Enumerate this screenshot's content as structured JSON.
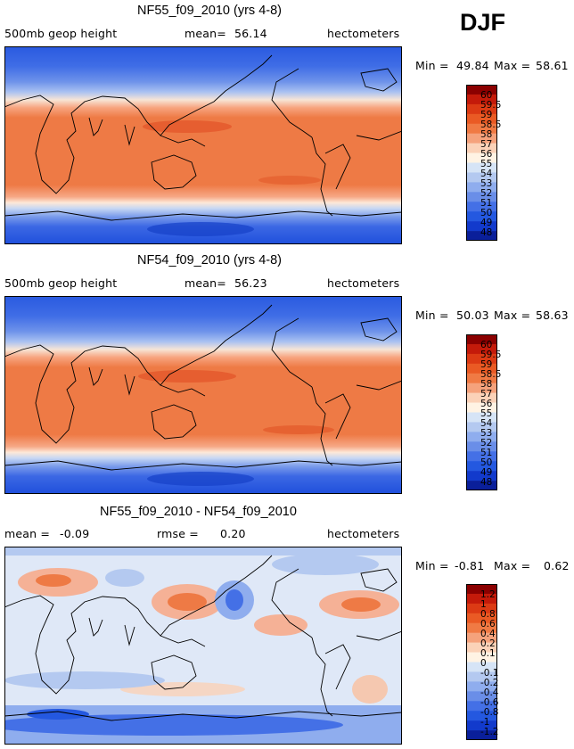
{
  "season": "DJF",
  "chart_data": [
    {
      "type": "heatmap",
      "title": "NF55_f09_2010 (yrs 4-8)",
      "field": "500mb geop height",
      "mean_label": "mean=",
      "mean": "56.14",
      "units": "hectometers",
      "min_label": "Min =",
      "min": "49.84",
      "max_label": "Max =",
      "max": "58.61",
      "colorbar_levels": [
        "60",
        "59.5",
        "59",
        "58.5",
        "58",
        "57",
        "56",
        "55",
        "54",
        "53",
        "52",
        "51",
        "50",
        "49",
        "48"
      ],
      "colorbar_colors": [
        "#8b0000",
        "#c41a0a",
        "#dc3a14",
        "#ea5a24",
        "#f07a44",
        "#f5a27c",
        "#fbd2b8",
        "#fff3e4",
        "#d6e4f6",
        "#b4c9f0",
        "#8fadee",
        "#6a8ee8",
        "#4470e6",
        "#2458e0",
        "#123acc",
        "#0a1f9a"
      ]
    },
    {
      "type": "heatmap",
      "title": "NF54_f09_2010 (yrs 4-8)",
      "field": "500mb geop height",
      "mean_label": "mean=",
      "mean": "56.23",
      "units": "hectometers",
      "min_label": "Min =",
      "min": "50.03",
      "max_label": "Max =",
      "max": "58.63",
      "colorbar_levels": [
        "60",
        "59.5",
        "59",
        "58.5",
        "58",
        "57",
        "56",
        "55",
        "54",
        "53",
        "52",
        "51",
        "50",
        "49",
        "48"
      ],
      "colorbar_colors": [
        "#8b0000",
        "#c41a0a",
        "#dc3a14",
        "#ea5a24",
        "#f07a44",
        "#f5a27c",
        "#fbd2b8",
        "#fff3e4",
        "#d6e4f6",
        "#b4c9f0",
        "#8fadee",
        "#6a8ee8",
        "#4470e6",
        "#2458e0",
        "#123acc",
        "#0a1f9a"
      ]
    },
    {
      "type": "heatmap",
      "title": "NF55_f09_2010 - NF54_f09_2010",
      "field": "",
      "mean_label": "mean =",
      "mean": "-0.09",
      "rmse_label": "rmse =",
      "rmse": "0.20",
      "units": "hectometers",
      "min_label": "Min =",
      "min": "-0.81",
      "max_label": "Max =",
      "max": "0.62",
      "colorbar_levels": [
        "1.2",
        "1",
        "0.8",
        "0.6",
        "0.4",
        "0.2",
        "0.1",
        "0",
        "-0.1",
        "-0.2",
        "-0.4",
        "-0.6",
        "-0.8",
        "-1",
        "-1.2"
      ],
      "colorbar_colors": [
        "#8b0000",
        "#c41a0a",
        "#dc3a14",
        "#ea5a24",
        "#f07a44",
        "#f5a27c",
        "#fbd2b8",
        "#fff3e4",
        "#d6e4f6",
        "#b4c9f0",
        "#8fadee",
        "#6a8ee8",
        "#4470e6",
        "#2458e0",
        "#123acc",
        "#0a1f9a"
      ]
    }
  ]
}
